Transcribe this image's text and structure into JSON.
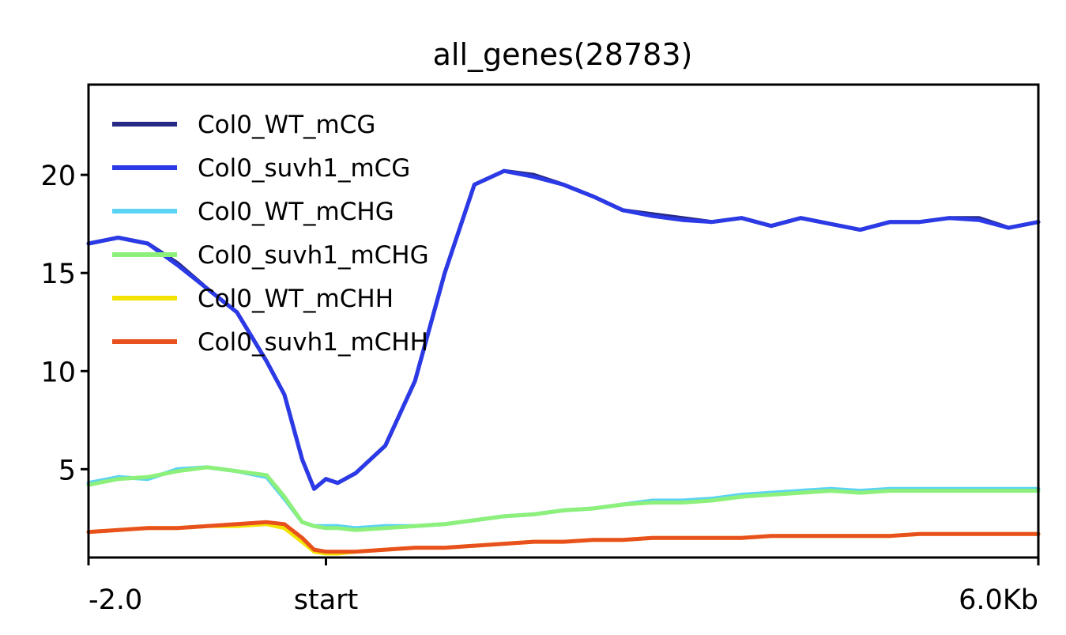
{
  "chart_data": {
    "type": "line",
    "title": "all_genes(28783)",
    "xlabel": "",
    "ylabel": "",
    "xlim": [
      -2.0,
      6.0
    ],
    "ylim": [
      0.5,
      24.6
    ],
    "yticks": [
      5,
      10,
      15,
      20
    ],
    "xticks": [
      {
        "value": -2.0,
        "label": "-2.0"
      },
      {
        "value": 0.0,
        "label": "start"
      },
      {
        "value": 6.0,
        "label": "6.0Kb"
      }
    ],
    "grid": false,
    "legend": "top-left",
    "x": [
      -2.0,
      -1.75,
      -1.5,
      -1.25,
      -1.0,
      -0.75,
      -0.5,
      -0.35,
      -0.2,
      -0.1,
      0.0,
      0.1,
      0.25,
      0.5,
      0.75,
      1.0,
      1.25,
      1.5,
      1.75,
      2.0,
      2.25,
      2.5,
      2.75,
      3.0,
      3.25,
      3.5,
      3.75,
      4.0,
      4.25,
      4.5,
      4.75,
      5.0,
      5.25,
      5.5,
      5.75,
      6.0
    ],
    "series": [
      {
        "name": "Col0_WT_mCG",
        "color": "#262a85",
        "values": [
          16.5,
          16.8,
          16.5,
          15.5,
          14.2,
          13.0,
          10.5,
          8.8,
          5.5,
          4.0,
          4.5,
          4.3,
          4.8,
          6.2,
          9.5,
          15.0,
          19.5,
          20.2,
          20.0,
          19.5,
          18.9,
          18.2,
          18.0,
          17.8,
          17.6,
          17.8,
          17.4,
          17.8,
          17.5,
          17.2,
          17.6,
          17.6,
          17.8,
          17.8,
          17.3,
          17.6
        ]
      },
      {
        "name": "Col0_suvh1_mCG",
        "color": "#2b3ae6",
        "values": [
          16.5,
          16.8,
          16.5,
          15.4,
          14.2,
          13.0,
          10.5,
          8.8,
          5.5,
          4.0,
          4.5,
          4.3,
          4.8,
          6.2,
          9.5,
          15.0,
          19.5,
          20.2,
          19.9,
          19.5,
          18.9,
          18.2,
          17.9,
          17.7,
          17.6,
          17.8,
          17.4,
          17.8,
          17.5,
          17.2,
          17.6,
          17.6,
          17.8,
          17.7,
          17.3,
          17.6
        ]
      },
      {
        "name": "Col0_WT_mCHG",
        "color": "#5bd3f5",
        "values": [
          4.3,
          4.6,
          4.5,
          5.0,
          5.1,
          4.9,
          4.6,
          3.5,
          2.3,
          2.1,
          2.1,
          2.1,
          2.0,
          2.1,
          2.1,
          2.2,
          2.4,
          2.6,
          2.7,
          2.9,
          3.0,
          3.2,
          3.4,
          3.4,
          3.5,
          3.7,
          3.8,
          3.9,
          4.0,
          3.9,
          4.0,
          4.0,
          4.0,
          4.0,
          4.0,
          4.0
        ]
      },
      {
        "name": "Col0_suvh1_mCHG",
        "color": "#8df07a",
        "values": [
          4.2,
          4.5,
          4.6,
          4.9,
          5.1,
          4.9,
          4.7,
          3.6,
          2.3,
          2.1,
          2.0,
          2.0,
          1.9,
          2.0,
          2.1,
          2.2,
          2.4,
          2.6,
          2.7,
          2.9,
          3.0,
          3.2,
          3.3,
          3.3,
          3.4,
          3.6,
          3.7,
          3.8,
          3.9,
          3.8,
          3.9,
          3.9,
          3.9,
          3.9,
          3.9,
          3.9
        ]
      },
      {
        "name": "Col0_WT_mCHH",
        "color": "#f2e300",
        "values": [
          1.8,
          1.9,
          2.0,
          2.0,
          2.1,
          2.1,
          2.2,
          2.0,
          1.3,
          0.8,
          0.7,
          0.7,
          0.8,
          0.9,
          1.0,
          1.0,
          1.1,
          1.2,
          1.3,
          1.3,
          1.4,
          1.4,
          1.5,
          1.5,
          1.5,
          1.5,
          1.6,
          1.6,
          1.6,
          1.6,
          1.6,
          1.7,
          1.7,
          1.7,
          1.7,
          1.7
        ]
      },
      {
        "name": "Col0_suvh1_mCHH",
        "color": "#e8511e",
        "values": [
          1.8,
          1.9,
          2.0,
          2.0,
          2.1,
          2.2,
          2.3,
          2.2,
          1.5,
          0.9,
          0.8,
          0.8,
          0.8,
          0.9,
          1.0,
          1.0,
          1.1,
          1.2,
          1.3,
          1.3,
          1.4,
          1.4,
          1.5,
          1.5,
          1.5,
          1.5,
          1.6,
          1.6,
          1.6,
          1.6,
          1.6,
          1.7,
          1.7,
          1.7,
          1.7,
          1.7
        ]
      }
    ]
  }
}
